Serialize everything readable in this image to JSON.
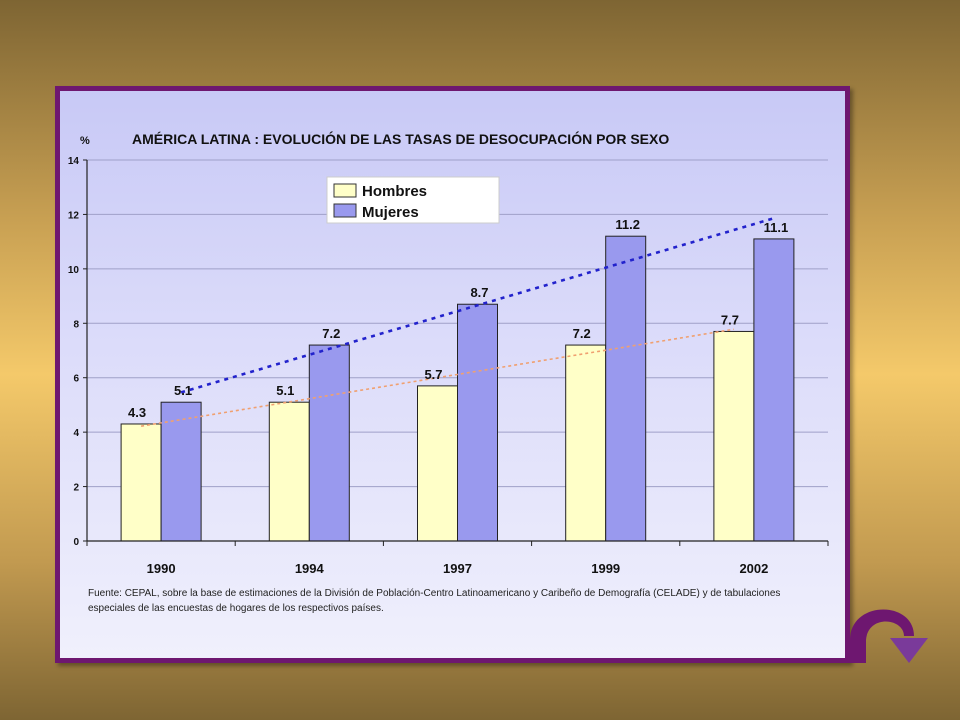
{
  "chart_data": {
    "type": "bar",
    "title": "AMÉRICA LATINA : EVOLUCIÓN DE LAS TASAS DE DESOCUPACIÓN POR SEXO",
    "ylabel": "%",
    "xlabel": "",
    "ylim": [
      0,
      14
    ],
    "yticks": [
      0,
      2,
      4,
      6,
      8,
      10,
      12,
      14
    ],
    "categories": [
      "1990",
      "1994",
      "1997",
      "1999",
      "2002"
    ],
    "series": [
      {
        "name": "Hombres",
        "values": [
          4.3,
          5.1,
          5.7,
          7.2,
          7.7
        ],
        "labels": [
          "4.3",
          "5.1",
          "5.7",
          "7.2",
          "7.7"
        ],
        "color": "#ffffc8",
        "trend_color": "#f0a070"
      },
      {
        "name": "Mujeres",
        "values": [
          5.1,
          7.2,
          8.7,
          11.2,
          11.1
        ],
        "labels": [
          "5.1",
          "7.2",
          "8.7",
          "11.2",
          "11.1"
        ],
        "color": "#9999ee",
        "trend_color": "#2222cc"
      }
    ],
    "trendlines": true,
    "grid": true,
    "legend": "top-left"
  },
  "source_lines": [
    "Fuente: CEPAL, sobre la base de estimaciones de la División de Población-Centro Latinoamericano y Caribeño de Demografía (CELADE) y de tabulaciones",
    "especiales de las encuestas de hogares de los respectivos países."
  ],
  "nav": {
    "icon": "curved-arrow-icon",
    "color": "#6e1770",
    "arrow_color": "#7a3a9a"
  }
}
